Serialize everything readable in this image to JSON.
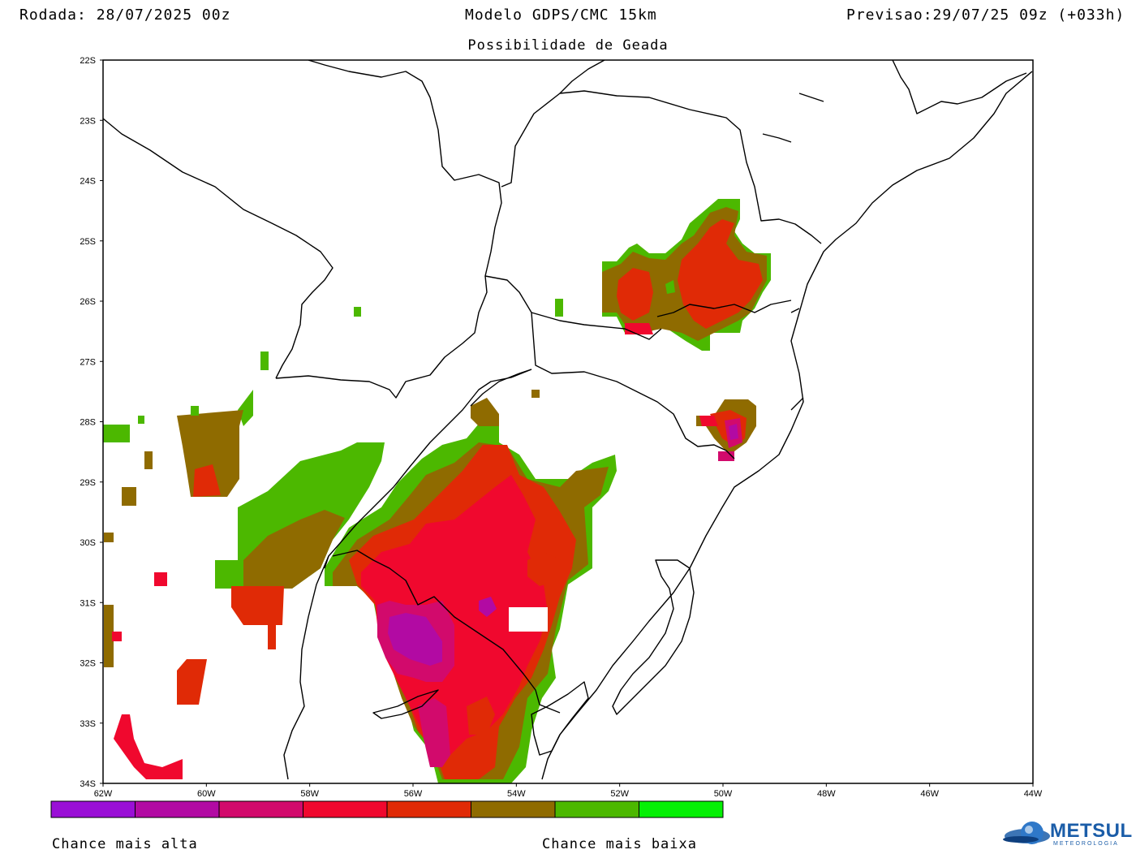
{
  "header": {
    "run": "Rodada: 28/07/2025 00z",
    "model": "Modelo GDPS/CMC 15km",
    "forecast": "Previsao:29/07/25 09z (+033h)",
    "subtitle": "Possibilidade de Geada"
  },
  "axes": {
    "lat_labels": [
      "22S",
      "23S",
      "24S",
      "25S",
      "26S",
      "27S",
      "28S",
      "29S",
      "30S",
      "31S",
      "32S",
      "33S",
      "34S"
    ],
    "lon_labels": [
      "62W",
      "60W",
      "58W",
      "56W",
      "54W",
      "52W",
      "50W",
      "48W",
      "46W",
      "44W"
    ]
  },
  "legend": {
    "colors": [
      "#9a0fd6",
      "#b20aa3",
      "#d20a6c",
      "#f0082e",
      "#e02a06",
      "#8f6b00",
      "#4cb800",
      "#05f005"
    ],
    "high_label": "Chance mais alta",
    "low_label": "Chance mais baixa"
  },
  "logo": {
    "name": "METSUL",
    "sub": "METEOROLOGIA"
  }
}
